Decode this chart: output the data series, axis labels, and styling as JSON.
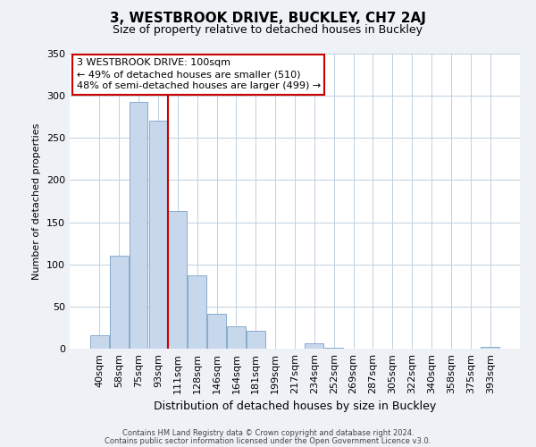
{
  "title": "3, WESTBROOK DRIVE, BUCKLEY, CH7 2AJ",
  "subtitle": "Size of property relative to detached houses in Buckley",
  "xlabel": "Distribution of detached houses by size in Buckley",
  "ylabel": "Number of detached properties",
  "bar_labels": [
    "40sqm",
    "58sqm",
    "75sqm",
    "93sqm",
    "111sqm",
    "128sqm",
    "146sqm",
    "164sqm",
    "181sqm",
    "199sqm",
    "217sqm",
    "234sqm",
    "252sqm",
    "269sqm",
    "287sqm",
    "305sqm",
    "322sqm",
    "340sqm",
    "358sqm",
    "375sqm",
    "393sqm"
  ],
  "bar_values": [
    16,
    110,
    293,
    270,
    163,
    87,
    41,
    27,
    21,
    0,
    0,
    6,
    1,
    0,
    0,
    0,
    0,
    0,
    0,
    0,
    2
  ],
  "bar_color": "#c8d8ec",
  "bar_edge_color": "#88aacc",
  "vline_color": "#cc0000",
  "annotation_lines": [
    "3 WESTBROOK DRIVE: 100sqm",
    "← 49% of detached houses are smaller (510)",
    "48% of semi-detached houses are larger (499) →"
  ],
  "annotation_box_edge_color": "#cc0000",
  "ylim": [
    0,
    350
  ],
  "yticks": [
    0,
    50,
    100,
    150,
    200,
    250,
    300,
    350
  ],
  "footer_lines": [
    "Contains HM Land Registry data © Crown copyright and database right 2024.",
    "Contains public sector information licensed under the Open Government Licence v3.0."
  ],
  "background_color": "#eef2f7",
  "plot_background_color": "#ffffff",
  "grid_color": "#c0d0e0",
  "title_fontsize": 11,
  "subtitle_fontsize": 9,
  "xlabel_fontsize": 9,
  "ylabel_fontsize": 8,
  "tick_fontsize": 8,
  "footer_fontsize": 6,
  "annot_fontsize": 8
}
